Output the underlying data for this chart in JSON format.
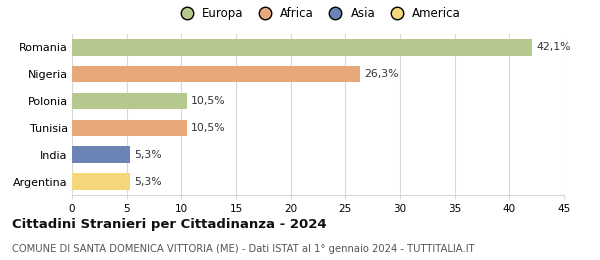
{
  "categories": [
    "Romania",
    "Nigeria",
    "Polonia",
    "Tunisia",
    "India",
    "Argentina"
  ],
  "values": [
    42.1,
    26.3,
    10.5,
    10.5,
    5.3,
    5.3
  ],
  "labels": [
    "42,1%",
    "26,3%",
    "10,5%",
    "10,5%",
    "5,3%",
    "5,3%"
  ],
  "colors": [
    "#b5c98e",
    "#e8a87c",
    "#b5c98e",
    "#e8a87c",
    "#6b83b5",
    "#f5d67b"
  ],
  "legend_labels": [
    "Europa",
    "Africa",
    "Asia",
    "America"
  ],
  "legend_colors": [
    "#b5c98e",
    "#e8a87c",
    "#6b83b5",
    "#f5d67b"
  ],
  "xlim": [
    0,
    45
  ],
  "xticks": [
    0,
    5,
    10,
    15,
    20,
    25,
    30,
    35,
    40,
    45
  ],
  "title": "Cittadini Stranieri per Cittadinanza - 2024",
  "subtitle": "COMUNE DI SANTA DOMENICA VITTORIA (ME) - Dati ISTAT al 1° gennaio 2024 - TUTTITALIA.IT",
  "title_fontsize": 9.5,
  "subtitle_fontsize": 7.2,
  "background_color": "#ffffff",
  "grid_color": "#d8d8d8",
  "bar_height": 0.62,
  "label_fontsize": 7.8,
  "ytick_fontsize": 8.0,
  "xtick_fontsize": 7.5
}
